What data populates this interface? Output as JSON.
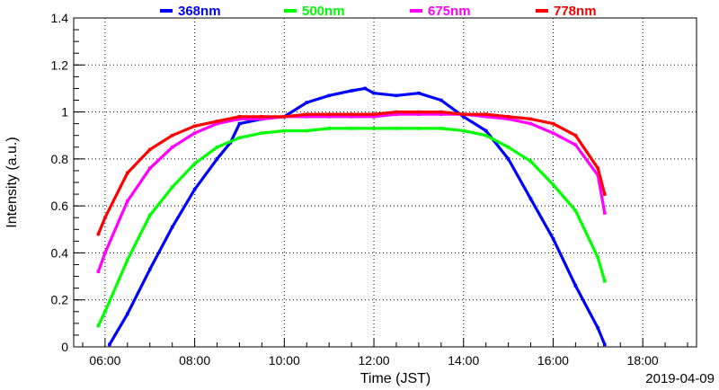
{
  "chart_data": {
    "type": "scatter",
    "title": "",
    "xlabel": "Time (JST)",
    "ylabel": "Intensity (a.u.)",
    "date": "2019-04-09",
    "xlim": [
      5.3,
      19.2
    ],
    "ylim": [
      0,
      1.4
    ],
    "xticks": [
      "06:00",
      "08:00",
      "10:00",
      "12:00",
      "14:00",
      "16:00",
      "18:00"
    ],
    "xtick_values": [
      6,
      8,
      10,
      12,
      14,
      16,
      18
    ],
    "yticks": [
      "0",
      "0.2",
      "0.4",
      "0.6",
      "0.8",
      "1",
      "1.2",
      "1.4"
    ],
    "ytick_values": [
      0,
      0.2,
      0.4,
      0.6,
      0.8,
      1.0,
      1.2,
      1.4
    ],
    "grid": true,
    "legend_position": "top",
    "series": [
      {
        "name": "368nm",
        "color": "#0000ff",
        "x": [
          6.1,
          6.5,
          7.0,
          7.5,
          8.0,
          8.5,
          8.8,
          9.0,
          9.5,
          10.0,
          10.5,
          11.0,
          11.5,
          11.8,
          12.0,
          12.5,
          13.0,
          13.5,
          14.0,
          14.5,
          15.0,
          15.5,
          16.0,
          16.5,
          17.0,
          17.15
        ],
        "y": [
          0.01,
          0.14,
          0.33,
          0.51,
          0.67,
          0.8,
          0.87,
          0.95,
          0.97,
          0.98,
          1.04,
          1.07,
          1.09,
          1.1,
          1.08,
          1.07,
          1.08,
          1.05,
          0.98,
          0.92,
          0.8,
          0.63,
          0.46,
          0.26,
          0.08,
          0.01
        ]
      },
      {
        "name": "500nm",
        "color": "#00ff00",
        "x": [
          5.85,
          6.0,
          6.5,
          7.0,
          7.5,
          8.0,
          8.5,
          9.0,
          9.5,
          10.0,
          10.5,
          11.0,
          11.5,
          12.0,
          12.5,
          13.0,
          13.5,
          14.0,
          14.5,
          15.0,
          15.5,
          16.0,
          16.5,
          17.0,
          17.15
        ],
        "y": [
          0.09,
          0.15,
          0.37,
          0.56,
          0.68,
          0.78,
          0.85,
          0.89,
          0.91,
          0.92,
          0.92,
          0.93,
          0.93,
          0.93,
          0.93,
          0.93,
          0.93,
          0.92,
          0.9,
          0.85,
          0.79,
          0.69,
          0.58,
          0.38,
          0.28
        ]
      },
      {
        "name": "675nm",
        "color": "#ff00ff",
        "x": [
          5.85,
          6.0,
          6.5,
          7.0,
          7.5,
          8.0,
          8.5,
          9.0,
          9.5,
          10.0,
          10.5,
          11.0,
          11.5,
          12.0,
          12.5,
          13.0,
          13.5,
          14.0,
          14.5,
          15.0,
          15.5,
          16.0,
          16.5,
          17.0,
          17.15
        ],
        "y": [
          0.32,
          0.4,
          0.62,
          0.76,
          0.85,
          0.91,
          0.95,
          0.97,
          0.97,
          0.98,
          0.98,
          0.98,
          0.98,
          0.98,
          0.99,
          0.99,
          0.99,
          0.99,
          0.98,
          0.97,
          0.95,
          0.91,
          0.86,
          0.73,
          0.57
        ]
      },
      {
        "name": "778nm",
        "color": "#ff0000",
        "x": [
          5.85,
          6.0,
          6.5,
          7.0,
          7.5,
          8.0,
          8.5,
          9.0,
          9.5,
          10.0,
          10.5,
          11.0,
          11.5,
          12.0,
          12.5,
          13.0,
          13.5,
          14.0,
          14.5,
          15.0,
          15.5,
          16.0,
          16.5,
          17.0,
          17.15
        ],
        "y": [
          0.48,
          0.55,
          0.74,
          0.84,
          0.9,
          0.94,
          0.96,
          0.98,
          0.98,
          0.98,
          0.99,
          0.99,
          0.99,
          0.99,
          1.0,
          1.0,
          1.0,
          0.99,
          0.99,
          0.98,
          0.97,
          0.95,
          0.9,
          0.76,
          0.65
        ]
      }
    ]
  }
}
